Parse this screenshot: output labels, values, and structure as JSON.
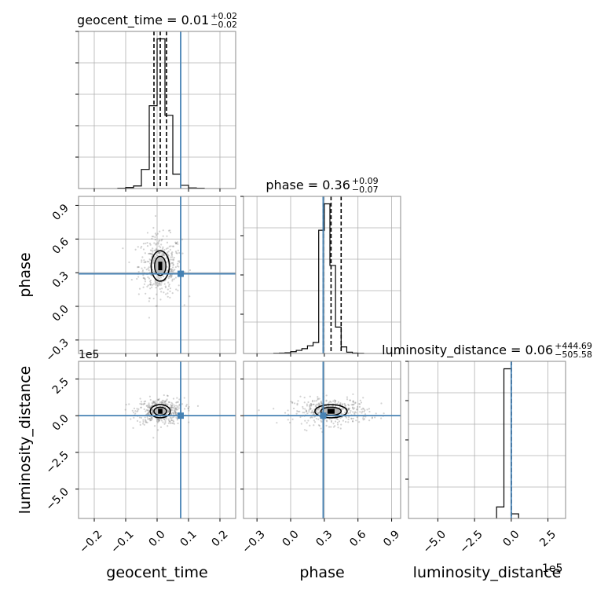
{
  "chart_data": {
    "type": "corner",
    "parameters": [
      "geocent_time",
      "phase",
      "luminosity_distance"
    ],
    "injection": {
      "geocent_time": 0.075,
      "phase": 0.29,
      "luminosity_distance": 0
    },
    "titles": [
      {
        "param": "geocent_time",
        "text": "geocent_time = 0.01",
        "plus": "+0.02",
        "minus": "−0.02"
      },
      {
        "param": "phase",
        "text": "phase = 0.36",
        "plus": "+0.09",
        "minus": "−0.07"
      },
      {
        "param": "luminosity_distance",
        "text": "luminosity_distance = 0.06",
        "plus": "+444.69",
        "minus": "−505.58"
      }
    ],
    "axis_labels": {
      "x": [
        "geocent_time",
        "phase",
        "luminosity_distance"
      ],
      "y": [
        "phase",
        "luminosity_distance"
      ]
    },
    "ranges": {
      "geocent_time": [
        -0.25,
        0.25
      ],
      "phase": [
        -0.42,
        0.98
      ],
      "luminosity_distance": [
        -7.0,
        3.7
      ]
    },
    "offset_text": {
      "row3_y": "1e5",
      "col3_x": "1e5"
    },
    "ticks": {
      "geocent_time": {
        "values": [
          -0.2,
          -0.1,
          0.0,
          0.1,
          0.2
        ],
        "labels": [
          "−0.2",
          "−0.1",
          "0.0",
          "0.1",
          "0.2"
        ]
      },
      "phase": {
        "values": [
          -0.3,
          0.0,
          0.3,
          0.6,
          0.9
        ],
        "labels": [
          "−0.3",
          "0.0",
          "0.3",
          "0.6",
          "0.9"
        ]
      },
      "luminosity_distance": {
        "values": [
          -5.0,
          -2.5,
          0.0,
          2.5
        ],
        "labels": [
          "−5.0",
          "−2.5",
          "0.0",
          "2.5"
        ]
      }
    },
    "quantiles": {
      "geocent_time": [
        -0.01,
        0.01,
        0.03
      ],
      "phase": [
        0.29,
        0.36,
        0.45
      ],
      "luminosity_distance": [
        -0.005,
        0.0,
        0.004
      ]
    },
    "histograms": {
      "geocent_time": {
        "bin_edges": [
          -0.125,
          -0.1,
          -0.075,
          -0.05,
          -0.025,
          0.0,
          0.025,
          0.05,
          0.075,
          0.1,
          0.125,
          0.15
        ],
        "counts": [
          1,
          3,
          8,
          60,
          260,
          470,
          230,
          45,
          10,
          2,
          1
        ]
      },
      "phase": {
        "bin_edges": [
          -0.15,
          -0.1,
          -0.05,
          0.0,
          0.05,
          0.1,
          0.15,
          0.2,
          0.25,
          0.3,
          0.35,
          0.4,
          0.45,
          0.5,
          0.55,
          0.6,
          0.65
        ],
        "counts": [
          1,
          2,
          3,
          8,
          14,
          22,
          35,
          50,
          560,
          680,
          400,
          120,
          30,
          6,
          2,
          1
        ]
      },
      "luminosity_distance": {
        "bin_edges": [
          -1.0,
          -0.5,
          0.0,
          0.5
        ],
        "counts": [
          20,
          260,
          8
        ]
      }
    },
    "contours_2d": [
      {
        "x": "geocent_time",
        "y": "phase",
        "center": [
          0.01,
          0.36
        ],
        "sigma": [
          0.018,
          0.085
        ],
        "levels_sigma": [
          1.0,
          1.6
        ]
      },
      {
        "x": "geocent_time",
        "y": "luminosity_distance",
        "center": [
          0.01,
          0.3
        ],
        "sigma": [
          0.02,
          0.28
        ],
        "levels_sigma": [
          1.0,
          1.6
        ]
      },
      {
        "x": "phase",
        "y": "luminosity_distance",
        "center": [
          0.36,
          0.3
        ],
        "sigma": [
          0.09,
          0.28
        ],
        "levels_sigma": [
          1.0,
          1.6
        ]
      }
    ],
    "grid": true,
    "colors": {
      "injection": "#4682b4",
      "histogram": "#000000",
      "points": "#7f7f7f",
      "grid": "#b0b0b0"
    }
  }
}
